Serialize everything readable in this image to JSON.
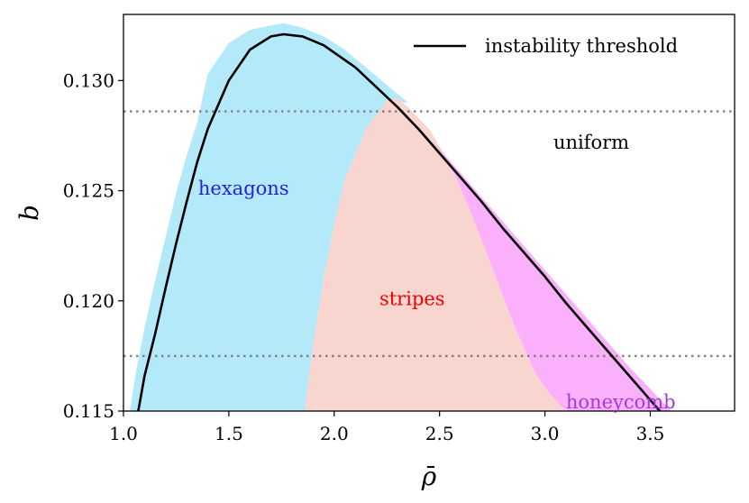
{
  "chart_data": {
    "type": "area",
    "xlabel": "ρ̄",
    "ylabel": "b",
    "xlim": [
      1.0,
      3.9
    ],
    "ylim": [
      0.115,
      0.133
    ],
    "xticks": [
      "1.0",
      "1.5",
      "2.0",
      "2.5",
      "3.0",
      "3.5"
    ],
    "xtick_values": [
      1.0,
      1.5,
      2.0,
      2.5,
      3.0,
      3.5
    ],
    "yticks": [
      "0.115",
      "0.120",
      "0.125",
      "0.130"
    ],
    "ytick_values": [
      0.115,
      0.12,
      0.125,
      0.13
    ],
    "legend": {
      "position": "top-right",
      "entries": [
        "instability threshold"
      ]
    },
    "series": [
      {
        "name": "instability threshold",
        "color": "#000000",
        "x": [
          1.07,
          1.1,
          1.15,
          1.2,
          1.25,
          1.3,
          1.35,
          1.4,
          1.5,
          1.6,
          1.7,
          1.76,
          1.85,
          1.95,
          2.1,
          2.2,
          2.3,
          2.4,
          2.5,
          2.6,
          2.7,
          2.8,
          2.9,
          3.0,
          3.1,
          3.2,
          3.3,
          3.4,
          3.5,
          3.6,
          3.7,
          3.78
        ],
        "y": [
          0.115,
          0.1166,
          0.1185,
          0.1206,
          0.1226,
          0.1245,
          0.1263,
          0.1278,
          0.13,
          0.1314,
          0.132,
          0.1321,
          0.132,
          0.1316,
          0.1306,
          0.1297,
          0.1288,
          0.1278,
          0.1267,
          0.1256,
          0.1245,
          0.1233,
          0.1222,
          0.1211,
          0.1199,
          0.1188,
          0.1177,
          0.1166,
          0.1155,
          0.1144,
          0.1133,
          0.1124
        ]
      }
    ],
    "regions": [
      {
        "name": "hexagons",
        "label": "hexagons",
        "fill": "#b4e9fa",
        "label_color": "#1f1fe6",
        "x": [
          1.03,
          1.06,
          1.1,
          1.15,
          1.2,
          1.25,
          1.3,
          1.35,
          1.4,
          1.5,
          1.6,
          1.7,
          1.76,
          1.85,
          1.95,
          2.05,
          2.15,
          2.25,
          2.35,
          2.25,
          2.15,
          2.05,
          2.0,
          1.95,
          1.9,
          1.86
        ],
        "y": [
          0.115,
          0.1168,
          0.1188,
          0.1209,
          0.1229,
          0.1249,
          0.1266,
          0.1281,
          0.1303,
          0.1317,
          0.1323,
          0.1325,
          0.1326,
          0.1324,
          0.132,
          0.1314,
          0.1306,
          0.1298,
          0.129,
          0.129,
          0.1278,
          0.1255,
          0.1235,
          0.121,
          0.118,
          0.115
        ]
      },
      {
        "name": "stripes",
        "label": "stripes",
        "fill": "#f9d5d0",
        "label_color": "#f20000",
        "x": [
          1.86,
          1.9,
          1.95,
          2.0,
          2.05,
          2.15,
          2.25,
          2.3,
          2.35,
          2.45,
          2.55,
          2.65,
          2.75,
          2.85,
          2.95,
          3.02,
          3.08,
          3.11
        ],
        "y": [
          0.115,
          0.118,
          0.121,
          0.1235,
          0.1255,
          0.1278,
          0.1291,
          0.1292,
          0.1288,
          0.1278,
          0.1262,
          0.124,
          0.1215,
          0.119,
          0.1168,
          0.1158,
          0.1152,
          0.115
        ]
      },
      {
        "name": "honeycomb",
        "label": "honeycomb",
        "fill": "#fbb0fb",
        "label_color": "#a03cdc",
        "x": [
          2.48,
          2.5,
          2.6,
          2.7,
          2.8,
          2.9,
          3.0,
          3.1,
          3.2,
          3.3,
          3.4,
          3.5,
          3.6,
          3.7,
          3.8,
          3.85,
          3.11,
          3.08,
          3.02,
          2.95,
          2.85,
          2.75,
          2.65,
          2.55
        ],
        "y": [
          0.1271,
          0.1269,
          0.1258,
          0.1247,
          0.1236,
          0.1225,
          0.1214,
          0.1203,
          0.1192,
          0.1181,
          0.117,
          0.116,
          0.115,
          0.114,
          0.115,
          0.115,
          0.115,
          0.1152,
          0.1158,
          0.1168,
          0.119,
          0.1215,
          0.124,
          0.1262
        ]
      },
      {
        "name": "uniform",
        "label": "uniform",
        "fill": "none",
        "label_color": "#000000"
      }
    ],
    "hlines": [
      {
        "y": 0.1286,
        "style": "dotted",
        "color": "#808080"
      },
      {
        "y": 0.1175,
        "style": "dotted",
        "color": "#808080"
      }
    ],
    "grid": false
  }
}
